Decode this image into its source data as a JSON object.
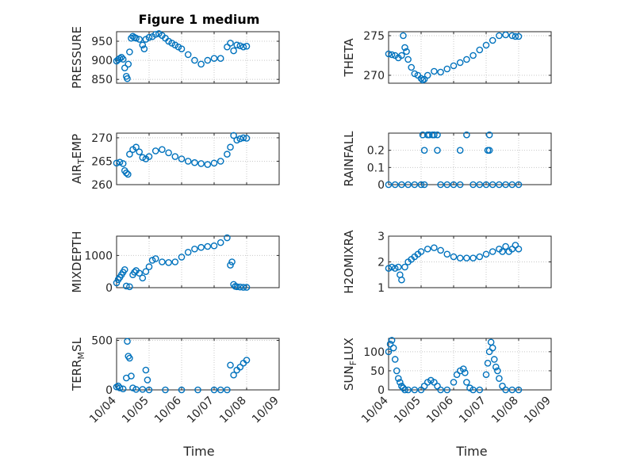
{
  "figure": {
    "title": "Figure 1 medium",
    "xlabel": "Time",
    "marker_color": "#0072BD",
    "x_ticks": [
      "10/04",
      "10/05",
      "10/06",
      "10/07",
      "10/08",
      "10/09"
    ]
  },
  "chart_data": [
    {
      "type": "scatter",
      "ylabel": "PRESSURE",
      "yticks": [
        "850",
        "900",
        "950"
      ],
      "ylim": [
        840,
        975
      ],
      "grid": "dotted",
      "series": [
        {
          "x": [
            0,
            0.05,
            0.1,
            0.15,
            0.2,
            0.25,
            0.3,
            0.33,
            0.36,
            0.4,
            0.45,
            0.5,
            0.55,
            0.6,
            0.7,
            0.8,
            0.85,
            0.9,
            1.0,
            1.1,
            1.2,
            1.3,
            1.4,
            1.5,
            1.6,
            1.7,
            1.8,
            1.9,
            2.0,
            2.2,
            2.4,
            2.6,
            2.8,
            3.0,
            3.2,
            3.4,
            3.5,
            3.6,
            3.7,
            3.8,
            3.9,
            4.0
          ],
          "y": [
            898,
            902,
            905,
            908,
            903,
            880,
            858,
            852,
            890,
            922,
            958,
            963,
            960,
            958,
            955,
            940,
            930,
            955,
            960,
            962,
            968,
            970,
            965,
            958,
            950,
            945,
            940,
            935,
            930,
            915,
            900,
            890,
            900,
            905,
            905,
            935,
            945,
            925,
            940,
            938,
            935,
            937
          ]
        }
      ]
    },
    {
      "type": "scatter",
      "ylabel": "THETA",
      "yticks": [
        "270",
        "275"
      ],
      "ylim": [
        269,
        275.5
      ],
      "grid": "dotted",
      "series": [
        {
          "x": [
            0,
            0.1,
            0.2,
            0.3,
            0.4,
            0.45,
            0.5,
            0.55,
            0.6,
            0.7,
            0.8,
            0.9,
            1.0,
            1.05,
            1.1,
            1.2,
            1.4,
            1.6,
            1.8,
            2.0,
            2.2,
            2.4,
            2.6,
            2.8,
            3.0,
            3.2,
            3.4,
            3.6,
            3.8,
            3.9,
            4.0
          ],
          "y": [
            272.7,
            272.6,
            272.5,
            272.2,
            272.5,
            275.0,
            273.5,
            273.0,
            272.0,
            271.0,
            270.2,
            270.0,
            269.6,
            269.4,
            269.5,
            270.0,
            270.5,
            270.4,
            270.8,
            271.2,
            271.6,
            272.0,
            272.5,
            273.2,
            273.8,
            274.4,
            275.0,
            275.1,
            275.0,
            274.9,
            274.9
          ]
        }
      ]
    },
    {
      "type": "scatter",
      "ylabel": "AIR_TEMP",
      "yticks": [
        "260",
        "265",
        "270"
      ],
      "ylim": [
        260,
        271
      ],
      "grid": "dotted",
      "series": [
        {
          "x": [
            0,
            0.1,
            0.2,
            0.25,
            0.3,
            0.35,
            0.4,
            0.5,
            0.6,
            0.7,
            0.8,
            0.9,
            1.0,
            1.2,
            1.4,
            1.6,
            1.8,
            2.0,
            2.2,
            2.4,
            2.6,
            2.8,
            3.0,
            3.2,
            3.4,
            3.5,
            3.6,
            3.7,
            3.8,
            3.9,
            4.0
          ],
          "y": [
            264.6,
            264.8,
            264.5,
            263.0,
            262.5,
            262.2,
            266.5,
            267.5,
            268.0,
            267.0,
            265.8,
            265.5,
            266.0,
            267.2,
            267.5,
            266.8,
            266.0,
            265.5,
            265.0,
            264.7,
            264.5,
            264.3,
            264.6,
            265.0,
            266.5,
            268.0,
            270.5,
            269.5,
            269.8,
            270.0,
            269.9
          ]
        }
      ]
    },
    {
      "type": "scatter",
      "ylabel": "RAINFALL",
      "yticks": [
        "0",
        "0.1",
        "0.2"
      ],
      "ylim": [
        0,
        0.3
      ],
      "grid": "dotted",
      "series": [
        {
          "x": [
            0,
            0.2,
            0.4,
            0.6,
            0.8,
            1.0,
            1.05,
            1.1,
            1.2,
            1.25,
            1.35,
            1.4,
            1.5,
            1.6,
            1.8,
            2.0,
            2.2,
            2.4,
            2.6,
            2.8,
            3.0,
            3.1,
            3.2,
            3.4,
            3.6,
            3.8,
            4.0,
            1.1,
            1.5,
            2.2,
            3.05,
            3.1
          ],
          "y": [
            0,
            0,
            0,
            0,
            0,
            0,
            0.29,
            0,
            0.29,
            0.29,
            0.29,
            0.29,
            0.29,
            0,
            0,
            0,
            0,
            0.29,
            0,
            0,
            0,
            0.29,
            0,
            0,
            0,
            0,
            0,
            0.2,
            0.2,
            0.2,
            0.2,
            0.2
          ]
        }
      ]
    },
    {
      "type": "scatter",
      "ylabel": "MIXDEPTH",
      "yticks": [
        "0",
        "1000"
      ],
      "ylim": [
        0,
        1600
      ],
      "grid": "dotted",
      "series": [
        {
          "x": [
            0,
            0.05,
            0.1,
            0.15,
            0.2,
            0.25,
            0.3,
            0.4,
            0.5,
            0.55,
            0.6,
            0.7,
            0.8,
            0.9,
            1.0,
            1.1,
            1.2,
            1.4,
            1.6,
            1.8,
            2.0,
            2.2,
            2.4,
            2.6,
            2.8,
            3.0,
            3.2,
            3.4,
            3.5,
            3.55,
            3.6,
            3.65,
            3.7,
            3.8,
            3.9,
            4.0
          ],
          "y": [
            150,
            250,
            320,
            400,
            480,
            560,
            50,
            30,
            400,
            480,
            530,
            450,
            300,
            500,
            650,
            850,
            900,
            800,
            780,
            800,
            950,
            1100,
            1200,
            1250,
            1280,
            1300,
            1400,
            1550,
            700,
            800,
            100,
            40,
            30,
            20,
            10,
            10
          ]
        }
      ]
    },
    {
      "type": "scatter",
      "ylabel": "H2OMIXRA",
      "yticks": [
        "1",
        "2",
        "3"
      ],
      "ylim": [
        1,
        3
      ],
      "grid": "dotted",
      "series": [
        {
          "x": [
            0,
            0.1,
            0.2,
            0.3,
            0.35,
            0.4,
            0.5,
            0.6,
            0.7,
            0.8,
            0.9,
            1.0,
            1.2,
            1.4,
            1.6,
            1.8,
            2.0,
            2.2,
            2.4,
            2.6,
            2.8,
            3.0,
            3.2,
            3.4,
            3.5,
            3.6,
            3.7,
            3.8,
            3.9,
            4.0
          ],
          "y": [
            1.75,
            1.8,
            1.75,
            1.8,
            1.5,
            1.3,
            1.8,
            2.0,
            2.1,
            2.2,
            2.3,
            2.4,
            2.5,
            2.55,
            2.45,
            2.3,
            2.2,
            2.15,
            2.15,
            2.15,
            2.2,
            2.3,
            2.4,
            2.5,
            2.4,
            2.6,
            2.4,
            2.5,
            2.65,
            2.5
          ]
        }
      ]
    },
    {
      "type": "scatter",
      "ylabel": "TERR_MSL",
      "yticks": [
        "0",
        "500"
      ],
      "ylim": [
        0,
        520
      ],
      "grid": "dotted",
      "series": [
        {
          "x": [
            0,
            0.05,
            0.1,
            0.2,
            0.3,
            0.33,
            0.36,
            0.4,
            0.45,
            0.5,
            0.6,
            0.8,
            0.9,
            0.95,
            1.0,
            1.5,
            2.0,
            2.5,
            3.0,
            3.2,
            3.4,
            3.5,
            3.6,
            3.7,
            3.8,
            3.9,
            4.0
          ],
          "y": [
            30,
            40,
            20,
            10,
            120,
            490,
            340,
            320,
            140,
            20,
            5,
            5,
            200,
            100,
            0,
            0,
            0,
            0,
            0,
            0,
            0,
            250,
            150,
            200,
            230,
            270,
            300
          ]
        }
      ]
    },
    {
      "type": "scatter",
      "ylabel": "SUN_FLUX",
      "yticks": [
        "0",
        "50",
        "100"
      ],
      "ylim": [
        0,
        135
      ],
      "grid": "dotted",
      "series": [
        {
          "x": [
            0,
            0.05,
            0.1,
            0.15,
            0.2,
            0.25,
            0.3,
            0.35,
            0.4,
            0.45,
            0.5,
            0.6,
            0.8,
            1.0,
            1.1,
            1.2,
            1.3,
            1.4,
            1.5,
            1.6,
            1.8,
            2.0,
            2.1,
            2.2,
            2.3,
            2.35,
            2.4,
            2.5,
            2.6,
            2.8,
            3.0,
            3.05,
            3.1,
            3.15,
            3.2,
            3.25,
            3.3,
            3.35,
            3.4,
            3.5,
            3.6,
            3.8,
            4.0
          ],
          "y": [
            100,
            120,
            130,
            110,
            80,
            50,
            30,
            20,
            10,
            5,
            0,
            0,
            0,
            0,
            10,
            20,
            25,
            20,
            10,
            0,
            0,
            20,
            40,
            50,
            55,
            45,
            20,
            5,
            0,
            0,
            40,
            70,
            100,
            125,
            110,
            80,
            60,
            50,
            30,
            10,
            0,
            0,
            0
          ]
        }
      ]
    }
  ]
}
